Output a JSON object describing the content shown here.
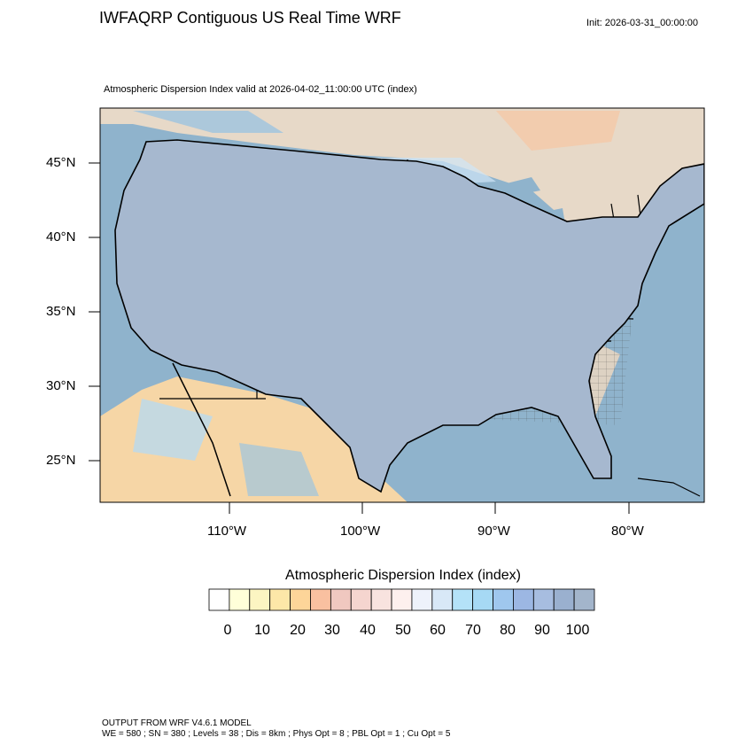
{
  "header": {
    "title": "IWFAQRP Contiguous US Real Time WRF",
    "init": "Init: 2026-03-31_00:00:00"
  },
  "map": {
    "subtitle": "Atmospheric Dispersion Index valid at 2026-04-02_11:00:00 UTC   (index)",
    "lat_labels": [
      "45°N",
      "40°N",
      "35°N",
      "30°N",
      "25°N"
    ],
    "lon_labels": [
      "110°W",
      "100°W",
      "90°W",
      "80°W"
    ],
    "colors": {
      "ocean": "#8fb3cc",
      "state_border": "#000000",
      "county_border": "#333333"
    }
  },
  "legend": {
    "title": "Atmospheric Dispersion Index  (index)",
    "tick_labels": [
      "0",
      "10",
      "20",
      "30",
      "40",
      "50",
      "60",
      "70",
      "80",
      "90",
      "100"
    ],
    "colors": [
      "#ffffff",
      "#ffffd9",
      "#fcf5c2",
      "#fde7a8",
      "#fdd599",
      "#f9c0a0",
      "#f0c8c0",
      "#f5d5cf",
      "#f8e3df",
      "#fdf0ee",
      "#eef2fb",
      "#d8e8f7",
      "#b4e2f8",
      "#a6d9f4",
      "#9fc7ee",
      "#9cb7e3",
      "#a7bde0",
      "#9ab0cf",
      "#a3b5cb"
    ]
  },
  "footer": {
    "line1": "OUTPUT FROM WRF V4.6.1 MODEL",
    "line2": "WE = 580 ; SN = 380 ; Levels = 38 ; Dis = 8km ; Phys Opt = 8 ; PBL Opt = 1 ; Cu Opt = 5"
  }
}
